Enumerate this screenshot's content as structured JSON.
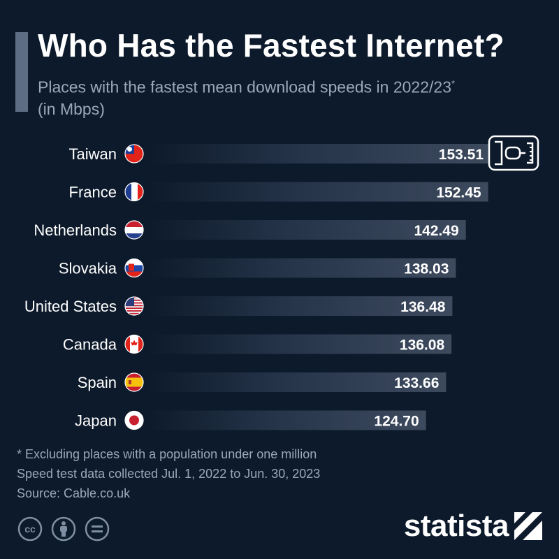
{
  "header": {
    "title": "Who Has the Fastest Internet?",
    "subtitle": "Places with the fastest mean download speeds in 2022/23",
    "subtitle_marker": "*",
    "unit_note": "(in Mbps)"
  },
  "chart_data": {
    "type": "bar",
    "orientation": "horizontal",
    "categories": [
      "Taiwan",
      "France",
      "Netherlands",
      "Slovakia",
      "United States",
      "Canada",
      "Spain",
      "Japan"
    ],
    "values": [
      153.51,
      152.45,
      142.49,
      138.03,
      136.48,
      136.08,
      133.66,
      124.7
    ],
    "value_labels": [
      "153.51",
      "152.45",
      "142.49",
      "138.03",
      "136.48",
      "136.08",
      "133.66",
      "124.70"
    ],
    "flags": [
      "taiwan-flag-icon",
      "france-flag-icon",
      "netherlands-flag-icon",
      "slovakia-flag-icon",
      "united-states-flag-icon",
      "canada-flag-icon",
      "spain-flag-icon",
      "japan-flag-icon"
    ],
    "title": "Who Has the Fastest Internet?",
    "xlabel": "",
    "ylabel": "",
    "xlim": [
      0,
      153.51
    ],
    "grid": false,
    "legend": "none",
    "bar_color_end": "#3d4a5e",
    "background_color": "#0d1a2b"
  },
  "footer": {
    "note": "* Excluding places with a population under one million",
    "data_period": "Speed test data collected Jul. 1, 2022 to Jun. 30, 2023",
    "source": "Source: Cable.co.uk",
    "license_icons": [
      "creative-commons-icon",
      "attribution-icon",
      "no-derivatives-icon"
    ],
    "brand": "statista"
  },
  "colors": {
    "background": "#0d1a2b",
    "subtitle": "#9aa8bb",
    "accent": "#5d6d84"
  }
}
